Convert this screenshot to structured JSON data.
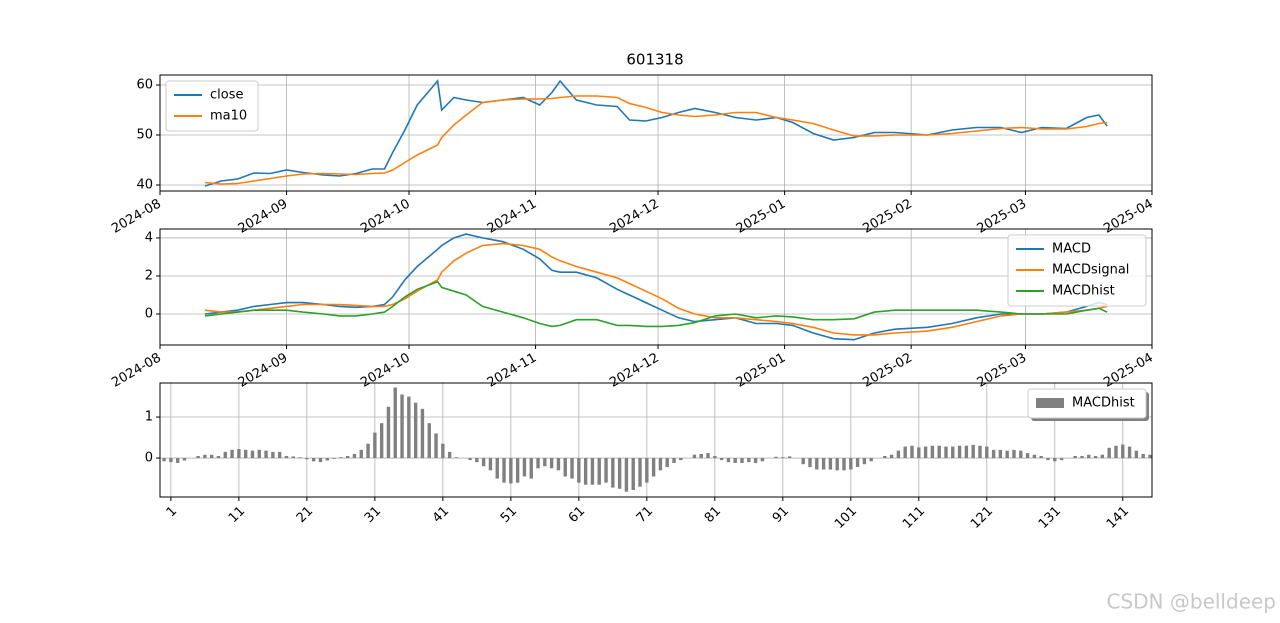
{
  "chart_data": [
    {
      "type": "line",
      "title": "601318",
      "x": [
        19947,
        19951,
        19955,
        19959,
        19963,
        19967,
        19971,
        19976,
        19980,
        19984,
        19988,
        19991,
        19993,
        19996,
        19999,
        20004,
        20005,
        20008,
        20011,
        20015,
        20020,
        20025,
        20029,
        20032,
        20034,
        20038,
        20043,
        20048,
        20051,
        20055,
        20059,
        20063,
        20067,
        20072,
        20077,
        20082,
        20087,
        20091,
        20096,
        20101,
        20106,
        20111,
        20116,
        20124,
        20130,
        20136,
        20142,
        20147,
        20152,
        20158,
        20163,
        20166,
        20168
      ],
      "series": [
        {
          "name": "close",
          "color": "#1f77b4",
          "values": [
            39.8,
            40.8,
            41.2,
            42.4,
            42.3,
            43.0,
            42.5,
            42.0,
            41.8,
            42.3,
            43.2,
            43.2,
            46.5,
            51.0,
            56.0,
            60.8,
            55.0,
            57.5,
            57.0,
            56.5,
            57.0,
            57.5,
            56.0,
            58.5,
            60.8,
            57.0,
            56.0,
            55.7,
            53.0,
            52.8,
            53.5,
            54.5,
            55.3,
            54.5,
            53.5,
            53.0,
            53.5,
            52.5,
            50.3,
            49.0,
            49.5,
            50.5,
            50.5,
            50.0,
            51.0,
            51.5,
            51.5,
            50.5,
            51.5,
            51.3,
            53.5,
            54.0,
            51.8
          ]
        },
        {
          "name": "ma10",
          "color": "#ff7f0e",
          "values": [
            40.5,
            40.2,
            40.3,
            40.8,
            41.3,
            41.8,
            42.2,
            42.3,
            42.2,
            42.1,
            42.3,
            42.4,
            43.0,
            44.5,
            46.0,
            48.0,
            49.5,
            52.0,
            54.0,
            56.5,
            57.0,
            57.2,
            57.2,
            57.3,
            57.5,
            57.8,
            57.8,
            57.5,
            56.3,
            55.5,
            54.5,
            54.0,
            53.7,
            54.0,
            54.5,
            54.5,
            53.5,
            53.0,
            52.3,
            51.0,
            49.8,
            49.8,
            50.0,
            50.0,
            50.3,
            50.8,
            51.3,
            51.5,
            51.2,
            51.2,
            51.7,
            52.3,
            52.5
          ]
        }
      ],
      "xlim": [
        19936,
        20179
      ],
      "xticks": [
        {
          "value": 19936,
          "label": "2024-08"
        },
        {
          "value": 19967,
          "label": "2024-09"
        },
        {
          "value": 19997,
          "label": "2024-10"
        },
        {
          "value": 20028,
          "label": "2024-11"
        },
        {
          "value": 20058,
          "label": "2024-12"
        },
        {
          "value": 20089,
          "label": "2025-01"
        },
        {
          "value": 20120,
          "label": "2025-02"
        },
        {
          "value": 20148,
          "label": "2025-03"
        },
        {
          "value": 20179,
          "label": "2025-04"
        }
      ],
      "ylim": [
        38.8,
        62
      ],
      "yticks": [
        40,
        50,
        60
      ],
      "grid": true,
      "legend": "upper left"
    },
    {
      "type": "line",
      "x": [
        19947,
        19951,
        19955,
        19959,
        19963,
        19967,
        19971,
        19976,
        19980,
        19984,
        19988,
        19991,
        19993,
        19996,
        19999,
        20004,
        20005,
        20008,
        20011,
        20015,
        20020,
        20025,
        20029,
        20032,
        20034,
        20038,
        20043,
        20048,
        20051,
        20055,
        20059,
        20063,
        20067,
        20072,
        20077,
        20082,
        20087,
        20091,
        20096,
        20101,
        20106,
        20111,
        20116,
        20124,
        20130,
        20136,
        20142,
        20147,
        20152,
        20158,
        20163,
        20166,
        20168
      ],
      "series": [
        {
          "name": "MACD",
          "color": "#1f77b4",
          "values": [
            0.0,
            0.1,
            0.2,
            0.4,
            0.5,
            0.6,
            0.6,
            0.5,
            0.4,
            0.35,
            0.4,
            0.5,
            0.9,
            1.8,
            2.5,
            3.4,
            3.6,
            4.0,
            4.2,
            4.0,
            3.8,
            3.4,
            2.9,
            2.3,
            2.2,
            2.2,
            1.9,
            1.3,
            1.0,
            0.6,
            0.2,
            -0.2,
            -0.4,
            -0.3,
            -0.2,
            -0.5,
            -0.5,
            -0.6,
            -1.0,
            -1.3,
            -1.35,
            -1.0,
            -0.8,
            -0.7,
            -0.5,
            -0.2,
            0.0,
            0.0,
            0.0,
            0.1,
            0.4,
            0.6,
            0.5
          ]
        },
        {
          "name": "MACDsignal",
          "color": "#ff7f0e",
          "values": [
            0.2,
            0.1,
            0.1,
            0.2,
            0.3,
            0.4,
            0.5,
            0.5,
            0.5,
            0.45,
            0.4,
            0.4,
            0.5,
            0.8,
            1.2,
            1.8,
            2.2,
            2.8,
            3.2,
            3.6,
            3.7,
            3.6,
            3.4,
            3.0,
            2.8,
            2.5,
            2.2,
            1.9,
            1.6,
            1.2,
            0.8,
            0.3,
            0.0,
            -0.2,
            -0.2,
            -0.3,
            -0.4,
            -0.5,
            -0.7,
            -1.0,
            -1.1,
            -1.1,
            -1.0,
            -0.9,
            -0.7,
            -0.4,
            -0.1,
            0.0,
            0.0,
            0.1,
            0.2,
            0.3,
            0.4
          ]
        },
        {
          "name": "MACDhist",
          "color": "#2ca02c",
          "values": [
            -0.1,
            0.0,
            0.1,
            0.2,
            0.2,
            0.2,
            0.1,
            0.0,
            -0.1,
            -0.1,
            0.0,
            0.1,
            0.4,
            0.9,
            1.3,
            1.7,
            1.4,
            1.2,
            1.0,
            0.4,
            0.1,
            -0.2,
            -0.5,
            -0.65,
            -0.6,
            -0.3,
            -0.3,
            -0.6,
            -0.6,
            -0.65,
            -0.65,
            -0.6,
            -0.45,
            -0.1,
            0.0,
            -0.2,
            -0.1,
            -0.15,
            -0.3,
            -0.3,
            -0.25,
            0.1,
            0.2,
            0.2,
            0.2,
            0.2,
            0.1,
            0.0,
            0.0,
            0.0,
            0.2,
            0.3,
            0.1
          ]
        }
      ],
      "xlim": [
        19936,
        20179
      ],
      "xticks": [
        {
          "value": 19936,
          "label": "2024-08"
        },
        {
          "value": 19967,
          "label": "2024-09"
        },
        {
          "value": 19997,
          "label": "2024-10"
        },
        {
          "value": 20028,
          "label": "2024-11"
        },
        {
          "value": 20058,
          "label": "2024-12"
        },
        {
          "value": 20089,
          "label": "2025-01"
        },
        {
          "value": 20120,
          "label": "2025-02"
        },
        {
          "value": 20148,
          "label": "2025-03"
        },
        {
          "value": 20179,
          "label": "2025-04"
        }
      ],
      "ylim": [
        -1.63,
        4.47
      ],
      "yticks": [
        0,
        2,
        4
      ],
      "grid": true,
      "legend": "upper right"
    },
    {
      "type": "bar",
      "x": [
        0,
        1,
        2,
        3,
        4,
        5,
        6,
        7,
        8,
        9,
        10,
        11,
        12,
        13,
        14,
        15,
        16,
        17,
        18,
        19,
        20,
        21,
        22,
        23,
        24,
        25,
        26,
        27,
        28,
        29,
        30,
        31,
        32,
        33,
        34,
        35,
        36,
        37,
        38,
        39,
        40,
        41,
        42,
        43,
        44,
        45,
        46,
        47,
        48,
        49,
        50,
        51,
        52,
        53,
        54,
        55,
        56,
        57,
        58,
        59,
        60,
        61,
        62,
        63,
        64,
        65,
        66,
        67,
        68,
        69,
        70,
        71,
        72,
        73,
        74,
        75,
        76,
        77,
        78,
        79,
        80,
        81,
        82,
        83,
        84,
        85,
        86,
        87,
        88,
        89,
        90,
        91,
        92,
        93,
        94,
        95,
        96,
        97,
        98,
        99,
        100,
        101,
        102,
        103,
        104,
        105,
        106,
        107,
        108,
        109,
        110,
        111,
        112,
        113,
        114,
        115,
        116,
        117,
        118,
        119,
        120,
        121,
        122,
        123,
        124,
        125,
        126,
        127,
        128,
        129,
        130,
        131,
        132,
        133,
        134,
        135,
        136,
        137,
        138,
        139,
        140,
        141,
        142,
        143,
        144,
        145
      ],
      "series": [
        {
          "name": "MACDhist",
          "color": "#808080",
          "values": [
            -0.08,
            -0.1,
            -0.12,
            -0.06,
            0.0,
            0.05,
            0.08,
            0.08,
            0.05,
            0.15,
            0.2,
            0.22,
            0.2,
            0.18,
            0.2,
            0.18,
            0.15,
            0.15,
            0.05,
            0.04,
            0.02,
            -0.03,
            -0.08,
            -0.1,
            -0.06,
            -0.02,
            0.02,
            0.05,
            0.1,
            0.2,
            0.35,
            0.62,
            0.85,
            1.25,
            1.72,
            1.55,
            1.5,
            1.35,
            1.2,
            0.85,
            0.6,
            0.35,
            0.15,
            0.02,
            0.0,
            -0.05,
            -0.1,
            -0.2,
            -0.3,
            -0.5,
            -0.6,
            -0.62,
            -0.6,
            -0.45,
            -0.5,
            -0.25,
            -0.2,
            -0.25,
            -0.3,
            -0.45,
            -0.5,
            -0.6,
            -0.65,
            -0.65,
            -0.65,
            -0.6,
            -0.72,
            -0.75,
            -0.82,
            -0.78,
            -0.7,
            -0.6,
            -0.45,
            -0.3,
            -0.22,
            -0.12,
            -0.05,
            0.0,
            0.08,
            0.1,
            0.12,
            0.05,
            -0.05,
            -0.1,
            -0.12,
            -0.12,
            -0.1,
            -0.12,
            -0.08,
            0.0,
            0.03,
            0.02,
            0.04,
            0.0,
            -0.15,
            -0.22,
            -0.28,
            -0.28,
            -0.28,
            -0.3,
            -0.3,
            -0.28,
            -0.22,
            -0.15,
            -0.08,
            0.0,
            0.05,
            0.08,
            0.18,
            0.28,
            0.3,
            0.26,
            0.28,
            0.3,
            0.3,
            0.28,
            0.28,
            0.3,
            0.3,
            0.32,
            0.3,
            0.28,
            0.2,
            0.2,
            0.18,
            0.2,
            0.18,
            0.12,
            0.08,
            0.05,
            -0.05,
            -0.08,
            -0.05,
            0.0,
            0.05,
            0.05,
            0.08,
            0.05,
            0.08,
            0.25,
            0.3,
            0.33,
            0.28,
            0.18,
            0.1,
            0.08
          ]
        }
      ],
      "xlim": [
        -0.6,
        145.3
      ],
      "xticks": [
        1,
        11,
        21,
        31,
        41,
        51,
        61,
        71,
        81,
        91,
        101,
        111,
        121,
        131,
        141
      ],
      "ylim": [
        -0.95,
        1.83
      ],
      "yticks": [
        0,
        1
      ],
      "grid": true,
      "legend": "upper right"
    }
  ],
  "watermark": "CSDN @belldeep"
}
